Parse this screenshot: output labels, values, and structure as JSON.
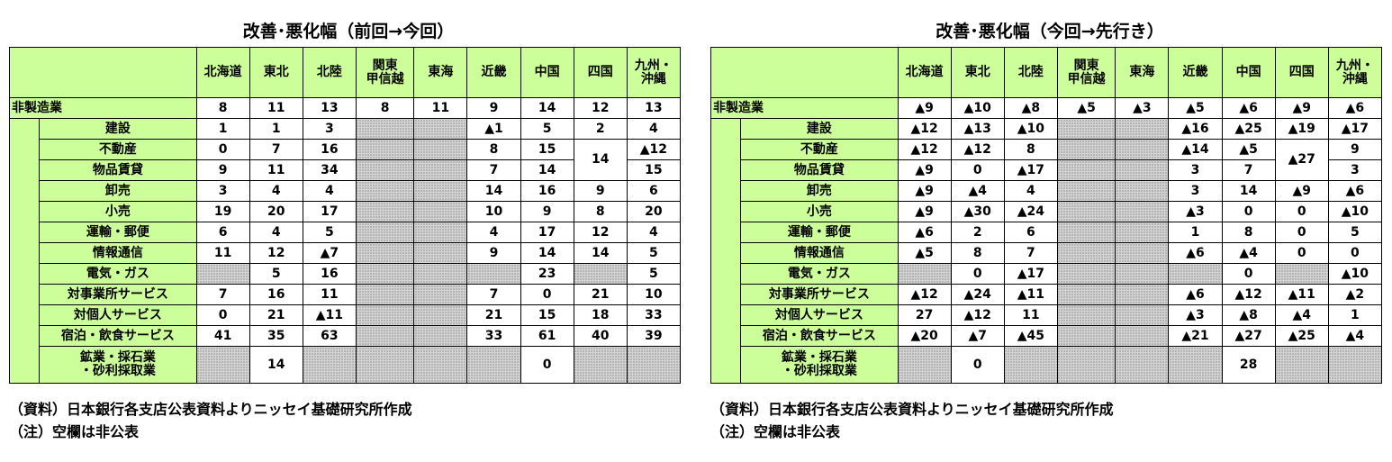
{
  "left": {
    "title": "改善･悪化幅（前回→今回）",
    "notes": [
      "（資料）日本銀行各支店公表資料よりニッセイ基礎研究所作成",
      "（注）空欄は非公表"
    ]
  },
  "right": {
    "title": "改善･悪化幅（今回→先行き）",
    "notes": [
      "（資料）日本銀行各支店公表資料よりニッセイ基礎研究所作成",
      "（注）空欄は非公表"
    ]
  },
  "regions": [
    "北海道",
    "東北",
    "北陸",
    "関東\n甲信越",
    "東海",
    "近畿",
    "中国",
    "四国",
    "九州・\n沖縄"
  ],
  "rows": [
    {
      "label": "非製造業",
      "top": true,
      "left": [
        "8",
        "11",
        "13",
        "8",
        "11",
        "9",
        "14",
        "12",
        "13"
      ],
      "right": [
        "▲9",
        "▲10",
        "▲8",
        "▲5",
        "▲3",
        "▲5",
        "▲6",
        "▲9",
        "▲6"
      ]
    },
    {
      "label": "建設",
      "left": [
        "1",
        "1",
        "3",
        "",
        "",
        "▲1",
        "5",
        "2",
        "4"
      ],
      "right": [
        "▲12",
        "▲13",
        "▲10",
        "",
        "",
        "▲16",
        "▲25",
        "▲19",
        "▲17"
      ]
    },
    {
      "label": "不動産",
      "left": [
        "0",
        "7",
        "16",
        "",
        "",
        "8",
        "15",
        "14",
        "▲12"
      ],
      "right": [
        "▲12",
        "▲12",
        "8",
        "",
        "",
        "▲14",
        "▲5",
        "▲27",
        "9"
      ]
    },
    {
      "label": "物品賃貸",
      "left": [
        "9",
        "11",
        "34",
        "",
        "",
        "7",
        "14",
        "",
        "15"
      ],
      "right": [
        "▲9",
        "0",
        "▲17",
        "",
        "",
        "3",
        "7",
        "",
        "3"
      ]
    },
    {
      "label": "卸売",
      "left": [
        "3",
        "4",
        "4",
        "",
        "",
        "14",
        "16",
        "9",
        "6"
      ],
      "right": [
        "▲9",
        "▲4",
        "4",
        "",
        "",
        "3",
        "14",
        "▲9",
        "▲6"
      ]
    },
    {
      "label": "小売",
      "left": [
        "19",
        "20",
        "17",
        "",
        "",
        "10",
        "9",
        "8",
        "20"
      ],
      "right": [
        "▲9",
        "▲30",
        "▲24",
        "",
        "",
        "▲3",
        "0",
        "0",
        "▲10"
      ]
    },
    {
      "label": "運輸・郵便",
      "left": [
        "6",
        "4",
        "5",
        "",
        "",
        "4",
        "17",
        "12",
        "4"
      ],
      "right": [
        "▲6",
        "2",
        "6",
        "",
        "",
        "1",
        "8",
        "0",
        "5"
      ]
    },
    {
      "label": "情報通信",
      "left": [
        "11",
        "12",
        "▲7",
        "",
        "",
        "9",
        "14",
        "14",
        "5"
      ],
      "right": [
        "▲5",
        "8",
        "7",
        "",
        "",
        "▲6",
        "▲4",
        "0",
        "0"
      ]
    },
    {
      "label": "電気・ガス",
      "left": [
        "",
        "5",
        "16",
        "",
        "",
        "",
        "23",
        "",
        "5"
      ],
      "right": [
        "",
        "0",
        "▲17",
        "",
        "",
        "",
        "0",
        "",
        "▲10"
      ]
    },
    {
      "label": "対事業所サービス",
      "left": [
        "7",
        "16",
        "11",
        "",
        "",
        "7",
        "0",
        "21",
        "10"
      ],
      "right": [
        "▲12",
        "▲24",
        "▲11",
        "",
        "",
        "▲6",
        "▲12",
        "▲11",
        "▲2"
      ]
    },
    {
      "label": "対個人サービス",
      "left": [
        "0",
        "21",
        "▲11",
        "",
        "",
        "21",
        "15",
        "18",
        "33"
      ],
      "right": [
        "27",
        "▲12",
        "11",
        "",
        "",
        "▲3",
        "▲8",
        "▲4",
        "1"
      ]
    },
    {
      "label": "宿泊・飲食サービス",
      "left": [
        "41",
        "35",
        "63",
        "",
        "",
        "33",
        "61",
        "40",
        "39"
      ],
      "right": [
        "▲20",
        "▲7",
        "▲45",
        "",
        "",
        "▲21",
        "▲27",
        "▲25",
        "▲4"
      ]
    },
    {
      "label": "鉱業・採石業\n・砂利採取業",
      "left": [
        "",
        "14",
        "",
        "",
        "",
        "",
        "0",
        "",
        ""
      ],
      "right": [
        "",
        "0",
        "",
        "",
        "",
        "",
        "28",
        "",
        ""
      ]
    }
  ]
}
